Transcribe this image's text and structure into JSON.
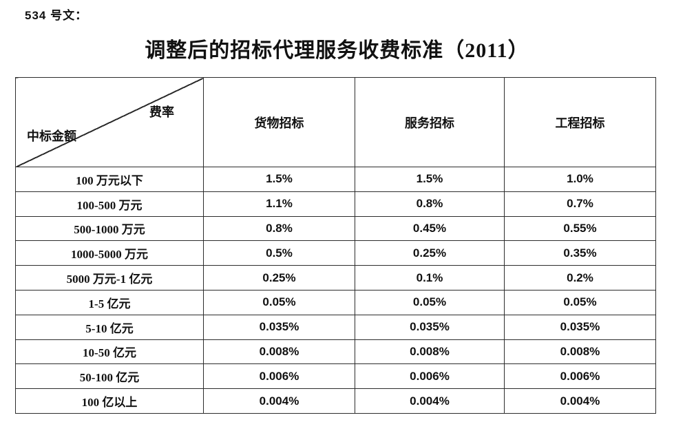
{
  "doc": {
    "ref_label": "534 号文：",
    "title": "调整后的招标代理服务收费标准（2011）"
  },
  "table": {
    "corner": {
      "top_right": "费率",
      "bottom_left": "中标金额"
    },
    "columns": [
      "货物招标",
      "服务招标",
      "工程招标"
    ],
    "rows": [
      {
        "label": "100 万元以下",
        "values": [
          "1.5%",
          "1.5%",
          "1.0%"
        ]
      },
      {
        "label": "100-500 万元",
        "values": [
          "1.1%",
          "0.8%",
          "0.7%"
        ]
      },
      {
        "label": "500-1000 万元",
        "values": [
          "0.8%",
          "0.45%",
          "0.55%"
        ]
      },
      {
        "label": "1000-5000 万元",
        "values": [
          "0.5%",
          "0.25%",
          "0.35%"
        ]
      },
      {
        "label": "5000 万元-1 亿元",
        "values": [
          "0.25%",
          "0.1%",
          "0.2%"
        ]
      },
      {
        "label": "1-5 亿元",
        "values": [
          "0.05%",
          "0.05%",
          "0.05%"
        ]
      },
      {
        "label": "5-10 亿元",
        "values": [
          "0.035%",
          "0.035%",
          "0.035%"
        ]
      },
      {
        "label": "10-50 亿元",
        "values": [
          "0.008%",
          "0.008%",
          "0.008%"
        ]
      },
      {
        "label": "50-100 亿元",
        "values": [
          "0.006%",
          "0.006%",
          "0.006%"
        ]
      },
      {
        "label": "100 亿以上",
        "values": [
          "0.004%",
          "0.004%",
          "0.004%"
        ]
      }
    ]
  },
  "colors": {
    "background": "#ffffff",
    "border": "#2b2b2b",
    "text": "#111111"
  }
}
